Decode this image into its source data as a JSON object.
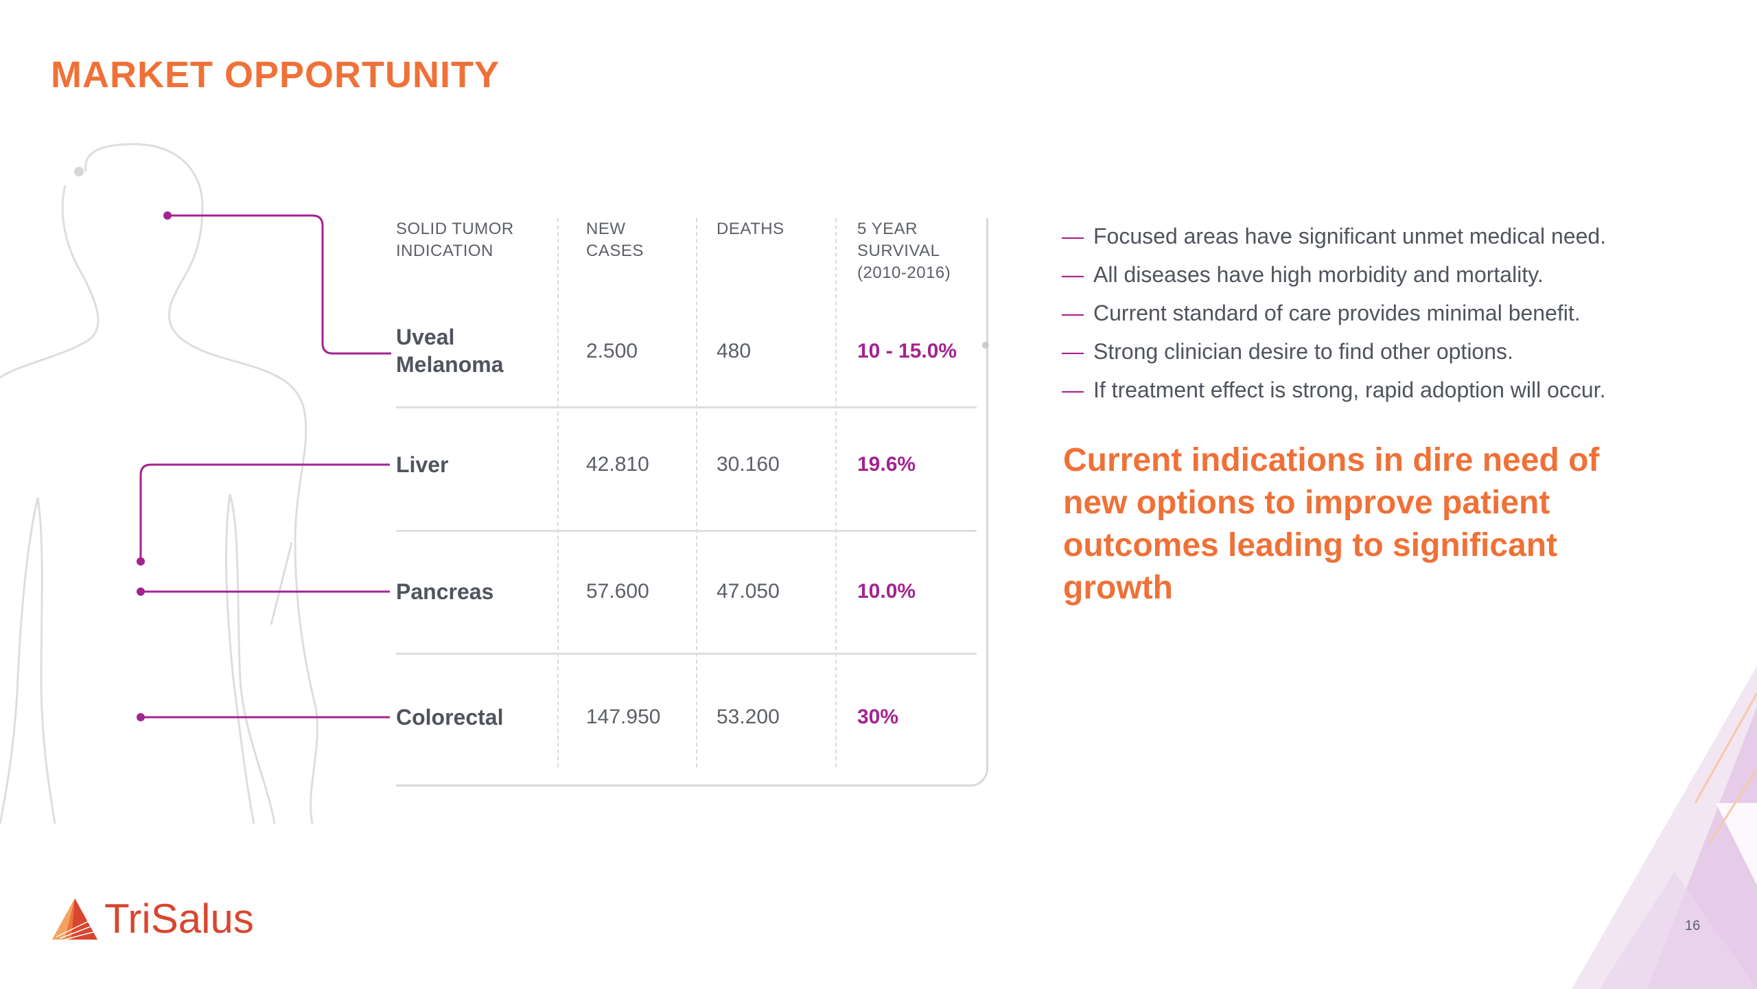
{
  "title": "MARKET OPPORTUNITY",
  "table": {
    "headers": [
      "SOLID TUMOR INDICATION",
      "NEW CASES",
      "DEATHS",
      "5 YEAR SURVIVAL (2010-2016)"
    ],
    "rows": [
      {
        "indication": "Uveal Melanoma",
        "new_cases": "2.500",
        "deaths": "480",
        "survival": "10 - 15.0%"
      },
      {
        "indication": "Liver",
        "new_cases": "42.810",
        "deaths": "30.160",
        "survival": "19.6%"
      },
      {
        "indication": "Pancreas",
        "new_cases": "57.600",
        "deaths": "47.050",
        "survival": "10.0%"
      },
      {
        "indication": "Colorectal",
        "new_cases": "147.950",
        "deaths": "53.200",
        "survival": "30%"
      }
    ]
  },
  "bullets": [
    "Focused areas have significant unmet medical need.",
    "All diseases have high morbidity and mortality.",
    "Current standard of care provides minimal benefit.",
    "Strong clinician desire to find other options.",
    "If treatment effect is strong, rapid adoption will occur."
  ],
  "bullet_marker": "—",
  "callout": "Current indications in dire need of new options to improve patient outcomes leading to significant growth",
  "logo_text": "TriSalus",
  "page_number": "16",
  "colors": {
    "accent_orange": "#ef7137",
    "accent_purple": "#a4238f",
    "body_text": "#5b5f66",
    "outline_gray": "#d6d8db"
  },
  "icons": [
    "human-body-outline",
    "trisalus-logo-mark",
    "triangle-corner-decoration"
  ]
}
